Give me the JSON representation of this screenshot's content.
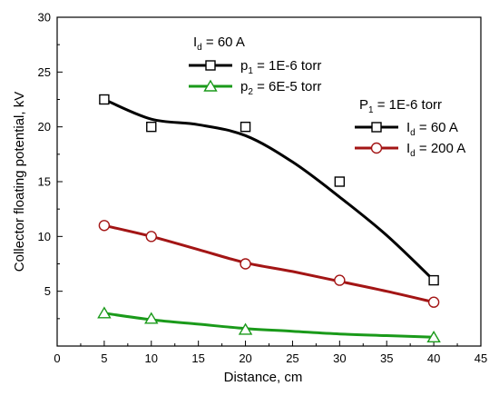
{
  "chart_data": {
    "type": "line",
    "title": "",
    "xlabel": "Distance, cm",
    "ylabel": "Collector floating potential, kV",
    "xlim": [
      0,
      45
    ],
    "ylim": [
      0,
      30
    ],
    "x_ticks": [
      0,
      5,
      10,
      15,
      20,
      25,
      30,
      35,
      40,
      45
    ],
    "y_ticks": [
      5,
      10,
      15,
      20,
      25,
      30
    ],
    "grid": false,
    "series": [
      {
        "id": "s1",
        "color": "#000000",
        "marker": "square",
        "points": [
          {
            "x": 5,
            "y": 22.5
          },
          {
            "x": 10,
            "y": 20.0
          },
          {
            "x": 20,
            "y": 20.0
          },
          {
            "x": 30,
            "y": 15.0
          },
          {
            "x": 40,
            "y": 6.0
          }
        ],
        "fit_curve": [
          {
            "x": 5,
            "y": 22.5
          },
          {
            "x": 10,
            "y": 20.7
          },
          {
            "x": 15,
            "y": 20.2
          },
          {
            "x": 20,
            "y": 19.2
          },
          {
            "x": 25,
            "y": 16.8
          },
          {
            "x": 30,
            "y": 13.6
          },
          {
            "x": 35,
            "y": 10.1
          },
          {
            "x": 40,
            "y": 6.0
          }
        ]
      },
      {
        "id": "s2",
        "color": "#a31515",
        "marker": "circle",
        "points": [
          {
            "x": 5,
            "y": 11.0
          },
          {
            "x": 10,
            "y": 10.0
          },
          {
            "x": 20,
            "y": 7.5
          },
          {
            "x": 30,
            "y": 6.0
          },
          {
            "x": 40,
            "y": 4.0
          }
        ],
        "fit_curve": [
          {
            "x": 5,
            "y": 11.0
          },
          {
            "x": 10,
            "y": 10.0
          },
          {
            "x": 15,
            "y": 8.8
          },
          {
            "x": 20,
            "y": 7.6
          },
          {
            "x": 25,
            "y": 6.8
          },
          {
            "x": 30,
            "y": 5.9
          },
          {
            "x": 35,
            "y": 5.0
          },
          {
            "x": 40,
            "y": 4.0
          }
        ]
      },
      {
        "id": "s3",
        "color": "#1a9a1a",
        "marker": "triangle",
        "points": [
          {
            "x": 5,
            "y": 3.0
          },
          {
            "x": 10,
            "y": 2.5
          },
          {
            "x": 20,
            "y": 1.5
          },
          {
            "x": 40,
            "y": 0.8
          }
        ],
        "fit_curve": [
          {
            "x": 5,
            "y": 3.0
          },
          {
            "x": 10,
            "y": 2.4
          },
          {
            "x": 15,
            "y": 2.0
          },
          {
            "x": 20,
            "y": 1.6
          },
          {
            "x": 25,
            "y": 1.35
          },
          {
            "x": 30,
            "y": 1.1
          },
          {
            "x": 35,
            "y": 0.95
          },
          {
            "x": 40,
            "y": 0.8
          }
        ]
      }
    ],
    "legend_left": {
      "header": {
        "main": "I",
        "sub": "d",
        "rest": " = 60 A"
      },
      "entries": [
        {
          "series": "s1",
          "main": "p",
          "sub": "1",
          "rest": " = 1E-6 torr"
        },
        {
          "series": "s3",
          "main": "p",
          "sub": "2",
          "rest": " = 6E-5 torr"
        }
      ]
    },
    "legend_right": {
      "header": {
        "main": "P",
        "sub": "1",
        "rest": " = 1E-6 torr"
      },
      "entries": [
        {
          "series": "s1",
          "main": "I",
          "sub": "d",
          "rest": " = 60 A"
        },
        {
          "series": "s2",
          "main": "I",
          "sub": "d",
          "rest": " = 200 A"
        }
      ]
    }
  }
}
